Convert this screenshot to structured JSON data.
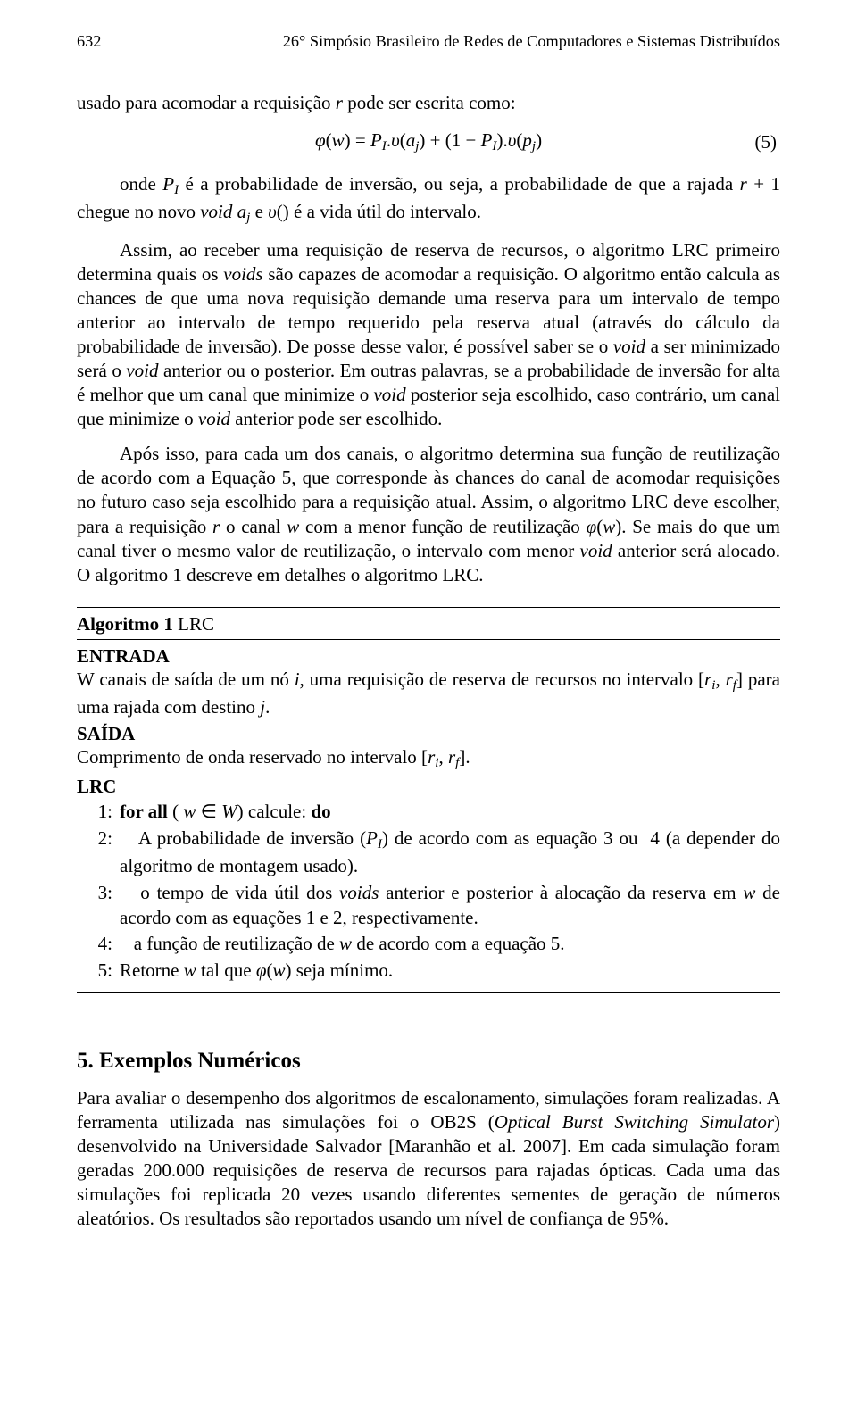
{
  "header": {
    "page_number": "632",
    "conference": "26° Simpósio Brasileiro de Redes de Computadores e Sistemas Distribuídos"
  },
  "intro_line": "usado para acomodar a requisição r pode ser escrita como:",
  "equation5": {
    "expr": "φ(w) = P_I.υ(a_j) + (1 − P_I).υ(p_j)",
    "number": "(5)"
  },
  "para_onde": "onde P_I é a probabilidade de inversão, ou seja, a probabilidade de que a rajada r + 1 chegue no novo void a_j e υ() é a vida útil do intervalo.",
  "para_assim": "Assim, ao receber uma requisição de reserva de recursos, o algoritmo LRC primeiro determina quais os voids são capazes de acomodar a requisição. O algoritmo então calcula as chances de que uma nova requisição demande uma reserva para um intervalo de tempo anterior ao intervalo de tempo requerido pela reserva atual (através do cálculo da probabilidade de inversão). De posse desse valor, é possível saber se o void a ser minimizado será o void anterior ou o posterior. Em outras palavras, se a probabilidade de inversão for alta é melhor que um canal que minimize o void posterior seja escolhido, caso contrário, um canal que minimize o void anterior pode ser escolhido.",
  "para_apos": "Após isso, para cada um dos canais, o algoritmo determina sua função de reutilização de acordo com a Equação 5, que corresponde às chances do canal de acomodar requisições no futuro caso seja escolhido para a requisição atual. Assim, o algoritmo LRC deve escolher, para a requisição r o canal w com a menor função de reutilização φ(w). Se mais do que um canal tiver o mesmo valor de reutilização, o intervalo com menor void anterior será alocado. O algoritmo 1 descreve em detalhes o algoritmo LRC.",
  "algorithm": {
    "title_bold": "Algoritmo 1",
    "title_rest": " LRC",
    "entrada_label": "ENTRADA",
    "entrada_text": "W canais de saída de um nó i, uma requisição de reserva de recursos no intervalo [r_i, r_f] para uma rajada com destino j.",
    "saida_label": "SAÍDA",
    "saida_text": "Comprimento de onda reservado no intervalo [r_i, r_f].",
    "lrc_label": "LRC",
    "steps": [
      {
        "n": "1:",
        "body_prefix_bold": "for all",
        "body_mid": " ( w ∈ W) calcule: ",
        "body_suffix_bold": "do"
      },
      {
        "n": "2:",
        "body": "A probabilidade de inversão (P_I) de acordo com as equação 3 ou  4 (a depender do algoritmo de montagem usado)."
      },
      {
        "n": "3:",
        "body": "o tempo de vida útil dos voids anterior e posterior à alocação da reserva em w de acordo com as equações 1 e 2, respectivamente."
      },
      {
        "n": "4:",
        "body": "a função de reutilização de w de acordo com a equação 5."
      },
      {
        "n": "5:",
        "body": "Retorne w tal que φ(w) seja mínimo."
      }
    ]
  },
  "section5": {
    "heading": "5. Exemplos Numéricos",
    "para": "Para avaliar o desempenho dos algoritmos de escalonamento, simulações foram realizadas. A ferramenta utilizada nas simulações foi o OB2S (Optical Burst Switching Simulator) desenvolvido na Universidade Salvador [Maranhão et al. 2007]. Em cada simulação foram geradas 200.000 requisições de reserva de recursos para rajadas ópticas. Cada uma das simulações foi replicada 20 vezes usando diferentes sementes de geração de números aleatórios. Os resultados são reportados usando um nível de confiança de 95%."
  }
}
